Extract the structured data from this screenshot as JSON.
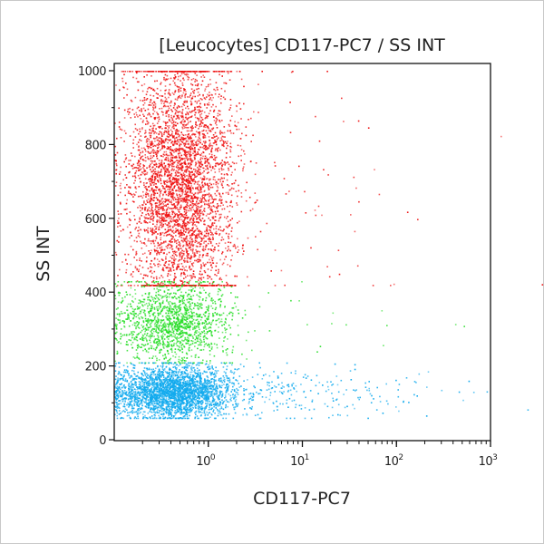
{
  "chart_data": {
    "type": "scatter",
    "title": "[Leucocytes] CD117-PC7 / SS INT",
    "xlabel": "CD117-PC7",
    "ylabel": "SS INT",
    "xscale": "log",
    "xlim": [
      0.1,
      1000
    ],
    "ylim": [
      0,
      1000
    ],
    "xticks": [
      {
        "base": "10",
        "exp": "0"
      },
      {
        "base": "10",
        "exp": "1"
      },
      {
        "base": "10",
        "exp": "2"
      },
      {
        "base": "10",
        "exp": "3"
      }
    ],
    "yticks": [
      "0",
      "200",
      "400",
      "600",
      "800",
      "1000"
    ],
    "grid": false,
    "populations": [
      {
        "color": "#ee1111",
        "x_center": 0.5,
        "x_range": [
          0.1,
          2
        ],
        "y_range": [
          420,
          1000
        ],
        "y_center": 700
      },
      {
        "color": "#22dd22",
        "x_center": 0.4,
        "x_range": [
          0.1,
          1.5
        ],
        "y_range": [
          210,
          430
        ],
        "y_center": 320
      },
      {
        "color": "#11aaee",
        "x_center": 0.4,
        "x_range": [
          0.1,
          30
        ],
        "y_range": [
          60,
          210
        ],
        "y_center": 130
      }
    ]
  }
}
